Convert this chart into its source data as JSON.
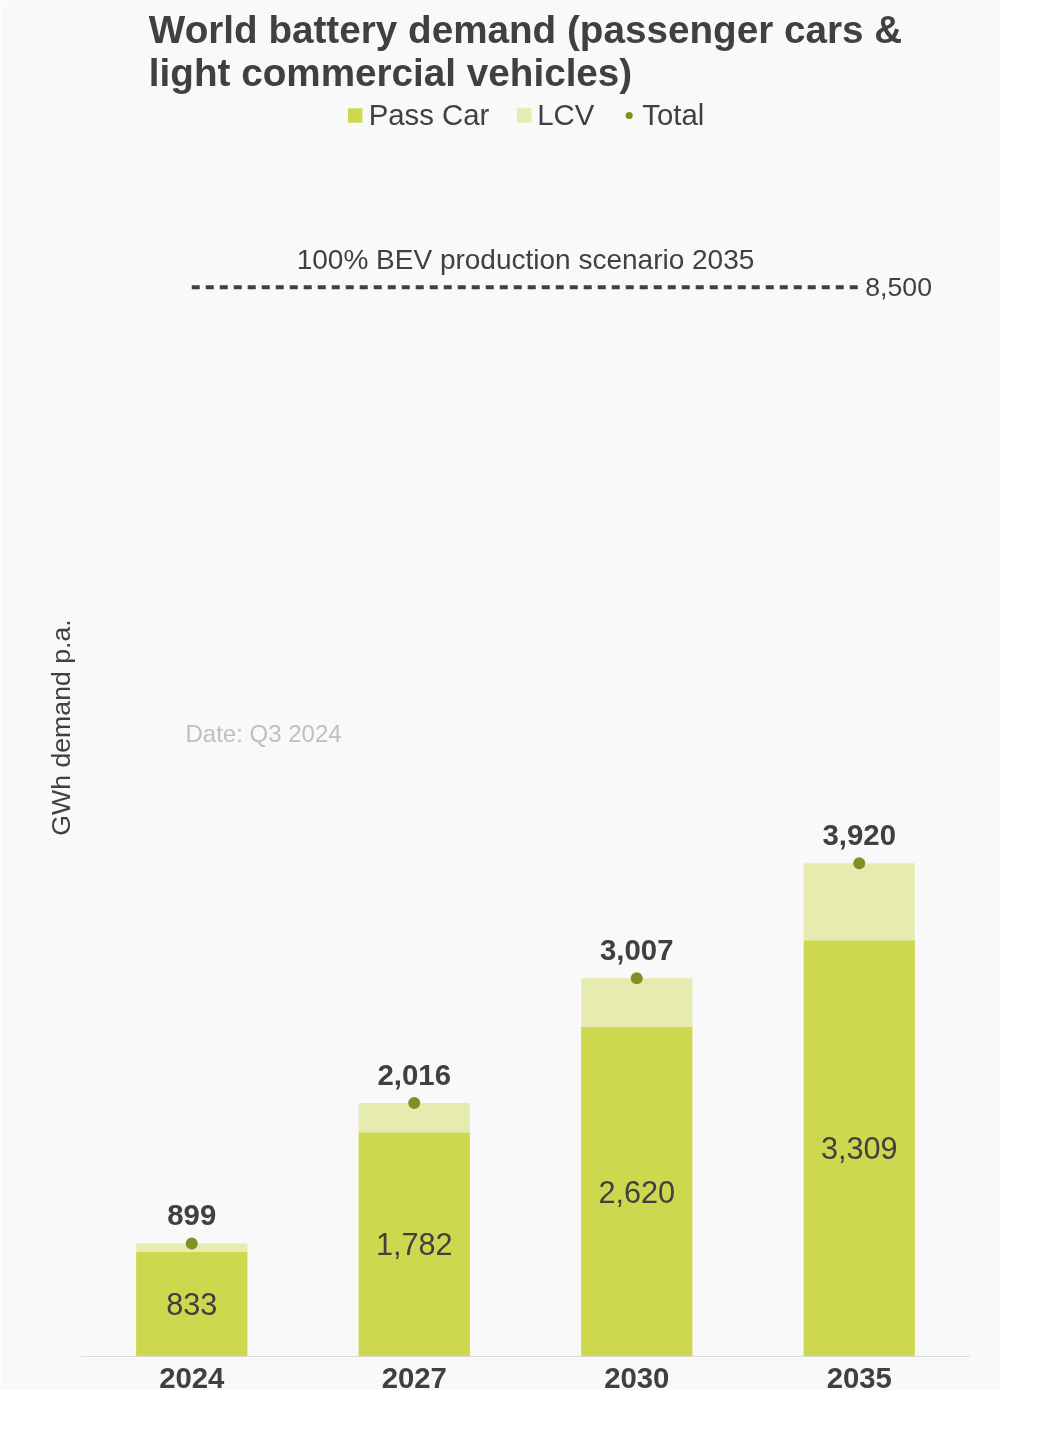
{
  "chart_data": {
    "type": "bar",
    "title": "World battery demand (passenger cars & light commercial vehicles)",
    "ylabel": "GWh demand p.a.",
    "categories": [
      "2024",
      "2027",
      "2030",
      "2035"
    ],
    "stacked": true,
    "series": [
      {
        "name": "Pass Car",
        "color": "#cdd84f",
        "values": [
          833,
          1782,
          2620,
          3309
        ],
        "value_labels": [
          "833",
          "1,782",
          "2,620",
          "3,309"
        ]
      },
      {
        "name": "LCV",
        "color": "#e6ebb0",
        "values": [
          66,
          234,
          387,
          611
        ]
      },
      {
        "name": "Total",
        "type": "scatter",
        "color": "#838f22",
        "values": [
          899,
          2016,
          3007,
          3920
        ],
        "value_labels": [
          "899",
          "2,016",
          "3,007",
          "3,920"
        ]
      }
    ],
    "ref_lines": [
      {
        "axis": "y",
        "value": 8500,
        "label": "100% BEV production scenario 2035",
        "color": "#404040",
        "line_style": "dashed"
      }
    ],
    "annotations": [
      "Date: Q3 2024",
      {
        "text": "8,500",
        "x": "2035",
        "y": 8500
      }
    ],
    "ylim": [
      0,
      10000
    ],
    "tick_labels": "x",
    "legend": "top",
    "grid": false,
    "marker": "circle"
  }
}
